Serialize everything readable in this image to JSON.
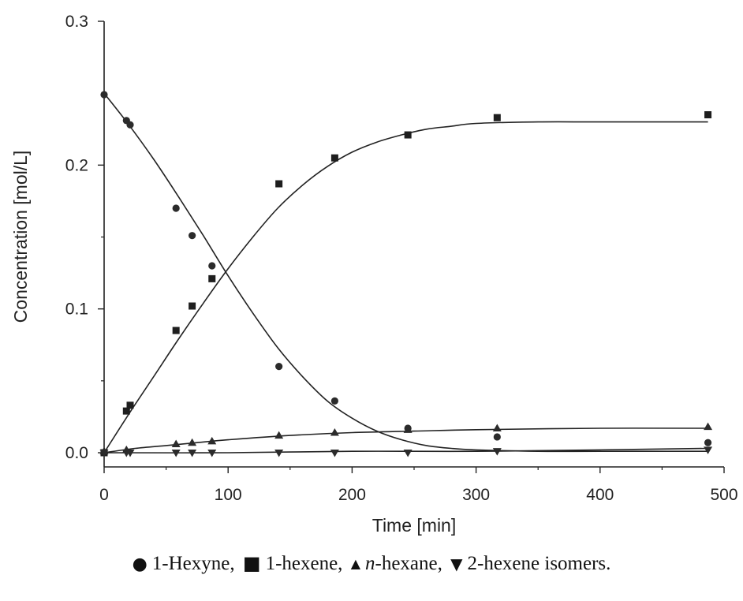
{
  "chart_data": {
    "type": "scatter",
    "xlabel": "Time [min]",
    "ylabel": "Concentration [mol/L]",
    "xlim": [
      0,
      500
    ],
    "ylim": [
      0,
      0.3
    ],
    "xticks": [
      0,
      100,
      200,
      300,
      400,
      500
    ],
    "yticks": [
      0.0,
      0.1,
      0.2,
      0.3
    ],
    "xtick_labels": [
      "0",
      "100",
      "200",
      "300",
      "400",
      "500"
    ],
    "ytick_labels": [
      "0.0",
      "0.1",
      "0.2",
      "0.3"
    ],
    "grid": false,
    "legend_position": "bottom",
    "series": [
      {
        "name": "1-Hexyne",
        "marker": "circle",
        "points": [
          [
            0,
            0.249
          ],
          [
            18,
            0.231
          ],
          [
            21,
            0.228
          ],
          [
            58,
            0.17
          ],
          [
            71,
            0.151
          ],
          [
            87,
            0.13
          ],
          [
            141,
            0.06
          ],
          [
            186,
            0.036
          ],
          [
            245,
            0.017
          ],
          [
            317,
            0.011
          ],
          [
            487,
            0.007
          ]
        ],
        "fit": [
          [
            0,
            0.25
          ],
          [
            20,
            0.228
          ],
          [
            40,
            0.204
          ],
          [
            60,
            0.178
          ],
          [
            80,
            0.151
          ],
          [
            100,
            0.123
          ],
          [
            120,
            0.097
          ],
          [
            140,
            0.073
          ],
          [
            160,
            0.053
          ],
          [
            180,
            0.036
          ],
          [
            200,
            0.024
          ],
          [
            220,
            0.015
          ],
          [
            240,
            0.009
          ],
          [
            260,
            0.005
          ],
          [
            280,
            0.003
          ],
          [
            300,
            0.002
          ],
          [
            350,
            0.001
          ],
          [
            400,
            0.001
          ],
          [
            487,
            0.001
          ]
        ]
      },
      {
        "name": "1-hexene",
        "marker": "square",
        "points": [
          [
            0,
            0.0
          ],
          [
            18,
            0.029
          ],
          [
            21,
            0.033
          ],
          [
            58,
            0.085
          ],
          [
            71,
            0.102
          ],
          [
            87,
            0.121
          ],
          [
            141,
            0.187
          ],
          [
            186,
            0.205
          ],
          [
            245,
            0.221
          ],
          [
            317,
            0.233
          ],
          [
            487,
            0.235
          ]
        ],
        "fit": [
          [
            0,
            0.0
          ],
          [
            20,
            0.027
          ],
          [
            40,
            0.053
          ],
          [
            60,
            0.079
          ],
          [
            80,
            0.104
          ],
          [
            100,
            0.128
          ],
          [
            120,
            0.15
          ],
          [
            140,
            0.17
          ],
          [
            160,
            0.186
          ],
          [
            180,
            0.199
          ],
          [
            200,
            0.209
          ],
          [
            220,
            0.216
          ],
          [
            240,
            0.221
          ],
          [
            260,
            0.225
          ],
          [
            280,
            0.227
          ],
          [
            300,
            0.229
          ],
          [
            350,
            0.23
          ],
          [
            400,
            0.23
          ],
          [
            487,
            0.23
          ]
        ]
      },
      {
        "name": "n-hexane",
        "marker": "triangle-up",
        "points": [
          [
            0,
            0.001
          ],
          [
            18,
            0.002
          ],
          [
            58,
            0.006
          ],
          [
            71,
            0.007
          ],
          [
            87,
            0.008
          ],
          [
            141,
            0.012
          ],
          [
            186,
            0.014
          ],
          [
            245,
            0.016
          ],
          [
            317,
            0.017
          ],
          [
            487,
            0.018
          ]
        ],
        "fit": [
          [
            0,
            0.0
          ],
          [
            25,
            0.003
          ],
          [
            50,
            0.005
          ],
          [
            75,
            0.007
          ],
          [
            100,
            0.009
          ],
          [
            150,
            0.012
          ],
          [
            200,
            0.014
          ],
          [
            250,
            0.015
          ],
          [
            300,
            0.016
          ],
          [
            400,
            0.017
          ],
          [
            487,
            0.017
          ]
        ]
      },
      {
        "name": "2-hexene isomers",
        "marker": "triangle-down",
        "points": [
          [
            0,
            0.0
          ],
          [
            18,
            0.0
          ],
          [
            21,
            0.0
          ],
          [
            58,
            0.0
          ],
          [
            71,
            0.0
          ],
          [
            87,
            0.0
          ],
          [
            141,
            0.0
          ],
          [
            186,
            0.0
          ],
          [
            245,
            0.0
          ],
          [
            317,
            0.001
          ],
          [
            487,
            0.002
          ]
        ],
        "fit": [
          [
            0,
            0.0
          ],
          [
            100,
            0.0
          ],
          [
            200,
            0.001
          ],
          [
            300,
            0.001
          ],
          [
            400,
            0.002
          ],
          [
            487,
            0.003
          ]
        ]
      }
    ]
  },
  "legend": {
    "hexyne": "1-Hexyne,",
    "hexene": "1-hexene,",
    "hexane_italic": "n",
    "hexane_rest": "-hexane,",
    "isomers": "2-hexene isomers."
  }
}
